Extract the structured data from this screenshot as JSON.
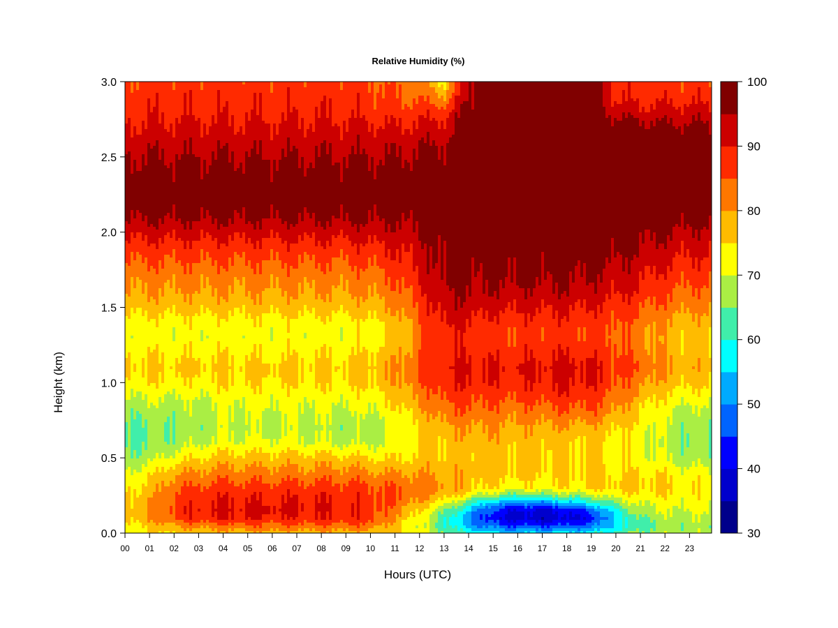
{
  "chart_data": {
    "type": "heatmap",
    "title": "Relative Humidity (%)",
    "xlabel": "Hours (UTC)",
    "ylabel": "Height (km)",
    "x_tick_labels": [
      "00",
      "01",
      "02",
      "03",
      "04",
      "05",
      "06",
      "07",
      "08",
      "09",
      "10",
      "11",
      "12",
      "13",
      "14",
      "15",
      "16",
      "17",
      "18",
      "19",
      "20",
      "21",
      "22",
      "23"
    ],
    "x_tick_values": [
      0,
      1,
      2,
      3,
      4,
      5,
      6,
      7,
      8,
      9,
      10,
      11,
      12,
      13,
      14,
      15,
      16,
      17,
      18,
      19,
      20,
      21,
      22,
      23
    ],
    "xlim": [
      0,
      23.9
    ],
    "y_tick_labels": [
      "0.0",
      "0.5",
      "1.0",
      "1.5",
      "2.0",
      "2.5",
      "3.0"
    ],
    "y_tick_values": [
      0,
      0.5,
      1.0,
      1.5,
      2.0,
      2.5,
      3.0
    ],
    "ylim": [
      0,
      3.0
    ],
    "colorbar": {
      "levels": [
        30,
        35,
        40,
        45,
        50,
        55,
        60,
        65,
        70,
        75,
        80,
        85,
        90,
        95,
        100
      ],
      "colors": [
        "#00008b",
        "#0000cd",
        "#0000ff",
        "#0064ff",
        "#00aaff",
        "#00ffff",
        "#40eeaa",
        "#aaee44",
        "#ffff00",
        "#ffbb00",
        "#ff7700",
        "#ff2a00",
        "#cc0000",
        "#800000"
      ],
      "tick_labels": [
        "30",
        "40",
        "50",
        "60",
        "70",
        "80",
        "90",
        "100"
      ],
      "tick_values": [
        30,
        40,
        50,
        60,
        70,
        80,
        90,
        100
      ]
    },
    "hours": [
      0,
      1,
      2,
      3,
      4,
      5,
      6,
      7,
      8,
      9,
      10,
      11,
      12,
      13,
      14,
      15,
      16,
      17,
      18,
      19,
      20,
      21,
      22,
      23
    ],
    "heights_km": [
      0.0,
      0.05,
      0.1,
      0.15,
      0.2,
      0.25,
      0.3,
      0.4,
      0.5,
      0.6,
      0.7,
      0.8,
      0.9,
      1.0,
      1.1,
      1.2,
      1.3,
      1.4,
      1.5,
      1.6,
      1.7,
      1.8,
      1.9,
      2.0,
      2.1,
      2.2,
      2.3,
      2.4,
      2.5,
      2.6,
      2.7,
      2.8,
      2.9,
      3.0
    ],
    "relative_humidity": [
      [
        72,
        74,
        76,
        77,
        78,
        78,
        78,
        78,
        78,
        78,
        78,
        76,
        72,
        66,
        60,
        56,
        55,
        56,
        57,
        58,
        62,
        66,
        68,
        68
      ],
      [
        74,
        76,
        80,
        82,
        83,
        84,
        84,
        84,
        84,
        84,
        83,
        77,
        70,
        62,
        52,
        47,
        44,
        44,
        45,
        47,
        56,
        63,
        66,
        67
      ],
      [
        76,
        80,
        86,
        89,
        90,
        90,
        90,
        89,
        89,
        89,
        88,
        80,
        73,
        63,
        50,
        41,
        38,
        37,
        38,
        42,
        56,
        65,
        68,
        69
      ],
      [
        76,
        80,
        87,
        90,
        91,
        91,
        91,
        90,
        90,
        90,
        88,
        82,
        75,
        66,
        55,
        44,
        40,
        39,
        41,
        46,
        60,
        68,
        70,
        70
      ],
      [
        76,
        79,
        86,
        89,
        90,
        90,
        90,
        90,
        90,
        89,
        88,
        84,
        79,
        72,
        62,
        53,
        50,
        50,
        53,
        58,
        66,
        71,
        72,
        72
      ],
      [
        75,
        78,
        85,
        88,
        89,
        89,
        89,
        89,
        89,
        88,
        87,
        85,
        82,
        78,
        72,
        66,
        63,
        64,
        66,
        69,
        72,
        74,
        74,
        73
      ],
      [
        74,
        77,
        84,
        86,
        87,
        87,
        87,
        87,
        87,
        87,
        86,
        85,
        83,
        81,
        77,
        74,
        73,
        73,
        74,
        75,
        76,
        76,
        76,
        74
      ],
      [
        71,
        73,
        79,
        81,
        82,
        82,
        82,
        82,
        82,
        82,
        81,
        80,
        80,
        79,
        78,
        77,
        76,
        76,
        76,
        76,
        75,
        75,
        74,
        72
      ],
      [
        66,
        68,
        72,
        75,
        77,
        77,
        77,
        77,
        77,
        76,
        75,
        74,
        76,
        77,
        77,
        77,
        76,
        76,
        76,
        76,
        74,
        72,
        70,
        67
      ],
      [
        64,
        65,
        67,
        69,
        71,
        71,
        71,
        71,
        70,
        69,
        69,
        71,
        74,
        77,
        78,
        78,
        77,
        77,
        76,
        76,
        74,
        72,
        68,
        65
      ],
      [
        64,
        65,
        66,
        67,
        69,
        69,
        69,
        69,
        68,
        67,
        68,
        71,
        75,
        79,
        80,
        80,
        79,
        79,
        79,
        78,
        76,
        73,
        69,
        66
      ],
      [
        66,
        67,
        67,
        68,
        70,
        70,
        70,
        70,
        70,
        69,
        70,
        73,
        78,
        83,
        84,
        83,
        82,
        83,
        84,
        84,
        80,
        75,
        71,
        68
      ],
      [
        70,
        70,
        70,
        70,
        72,
        72,
        72,
        72,
        72,
        72,
        73,
        76,
        81,
        86,
        87,
        86,
        86,
        87,
        88,
        87,
        83,
        78,
        74,
        72
      ],
      [
        74,
        74,
        74,
        74,
        75,
        75,
        75,
        75,
        75,
        75,
        76,
        79,
        84,
        89,
        90,
        89,
        89,
        90,
        91,
        90,
        86,
        82,
        78,
        76
      ],
      [
        76,
        76,
        76,
        76,
        76,
        76,
        76,
        76,
        76,
        76,
        77,
        80,
        85,
        90,
        91,
        90,
        90,
        91,
        92,
        91,
        87,
        84,
        80,
        78
      ],
      [
        74,
        74,
        74,
        74,
        74,
        74,
        74,
        74,
        74,
        74,
        75,
        78,
        84,
        89,
        89,
        88,
        88,
        89,
        89,
        88,
        86,
        83,
        79,
        77
      ],
      [
        72,
        72,
        72,
        72,
        72,
        72,
        72,
        72,
        72,
        72,
        73,
        76,
        83,
        89,
        88,
        86,
        86,
        87,
        87,
        86,
        85,
        82,
        78,
        76
      ],
      [
        73,
        73,
        73,
        73,
        73,
        73,
        73,
        73,
        73,
        73,
        74,
        77,
        84,
        91,
        90,
        88,
        88,
        88,
        88,
        87,
        86,
        83,
        80,
        78
      ],
      [
        77,
        77,
        77,
        77,
        77,
        77,
        77,
        77,
        77,
        77,
        78,
        80,
        86,
        93,
        93,
        91,
        91,
        91,
        91,
        90,
        88,
        86,
        83,
        81
      ],
      [
        80,
        80,
        80,
        80,
        80,
        80,
        80,
        80,
        80,
        80,
        81,
        83,
        88,
        95,
        95,
        94,
        94,
        94,
        94,
        93,
        91,
        89,
        86,
        84
      ],
      [
        82,
        82,
        82,
        82,
        82,
        82,
        82,
        82,
        82,
        82,
        83,
        85,
        90,
        96,
        96,
        96,
        96,
        96,
        96,
        95,
        93,
        91,
        88,
        86
      ],
      [
        85,
        85,
        85,
        85,
        85,
        85,
        85,
        85,
        85,
        85,
        86,
        88,
        92,
        97,
        97,
        97,
        97,
        97,
        97,
        97,
        95,
        93,
        91,
        89
      ],
      [
        88,
        88,
        88,
        88,
        88,
        88,
        88,
        88,
        88,
        88,
        89,
        90,
        93,
        97,
        98,
        98,
        98,
        98,
        98,
        98,
        97,
        95,
        93,
        91
      ],
      [
        92,
        92,
        92,
        92,
        92,
        92,
        92,
        92,
        92,
        92,
        93,
        93,
        95,
        98,
        99,
        99,
        99,
        99,
        99,
        99,
        98,
        97,
        96,
        94
      ],
      [
        96,
        96,
        96,
        96,
        96,
        96,
        96,
        96,
        96,
        96,
        96,
        96,
        97,
        98,
        99,
        99,
        99,
        99,
        99,
        99,
        99,
        99,
        98,
        97
      ],
      [
        98,
        98,
        98,
        98,
        98,
        98,
        98,
        98,
        98,
        98,
        98,
        98,
        98,
        99,
        99,
        99,
        99,
        99,
        99,
        99,
        99,
        99,
        99,
        99
      ],
      [
        98,
        98,
        98,
        98,
        98,
        98,
        98,
        98,
        98,
        98,
        98,
        98,
        98,
        99,
        99,
        99,
        99,
        99,
        99,
        99,
        99,
        99,
        99,
        99
      ],
      [
        97,
        97,
        97,
        97,
        97,
        97,
        97,
        97,
        97,
        97,
        97,
        97,
        98,
        98,
        99,
        99,
        99,
        99,
        99,
        99,
        99,
        99,
        99,
        99
      ],
      [
        95,
        95,
        95,
        95,
        95,
        95,
        95,
        95,
        95,
        95,
        95,
        95,
        96,
        97,
        99,
        99,
        99,
        99,
        99,
        99,
        99,
        99,
        99,
        99
      ],
      [
        93,
        93,
        93,
        93,
        93,
        93,
        93,
        93,
        93,
        93,
        93,
        93,
        94,
        95,
        98,
        99,
        99,
        99,
        99,
        99,
        99,
        99,
        99,
        99
      ],
      [
        90,
        91,
        91,
        91,
        91,
        91,
        91,
        91,
        91,
        91,
        91,
        90,
        91,
        92,
        98,
        99,
        99,
        99,
        99,
        99,
        98,
        97,
        96,
        96
      ],
      [
        88,
        89,
        89,
        89,
        89,
        89,
        89,
        89,
        89,
        89,
        88,
        87,
        88,
        88,
        97,
        99,
        99,
        99,
        99,
        99,
        93,
        92,
        92,
        92
      ],
      [
        87,
        88,
        88,
        88,
        88,
        88,
        88,
        88,
        88,
        88,
        87,
        85,
        84,
        80,
        96,
        99,
        99,
        99,
        99,
        98,
        89,
        88,
        88,
        88
      ],
      [
        86,
        87,
        87,
        87,
        87,
        87,
        87,
        87,
        87,
        87,
        86,
        84,
        82,
        74,
        96,
        99,
        99,
        99,
        99,
        98,
        88,
        87,
        87,
        87
      ]
    ]
  }
}
